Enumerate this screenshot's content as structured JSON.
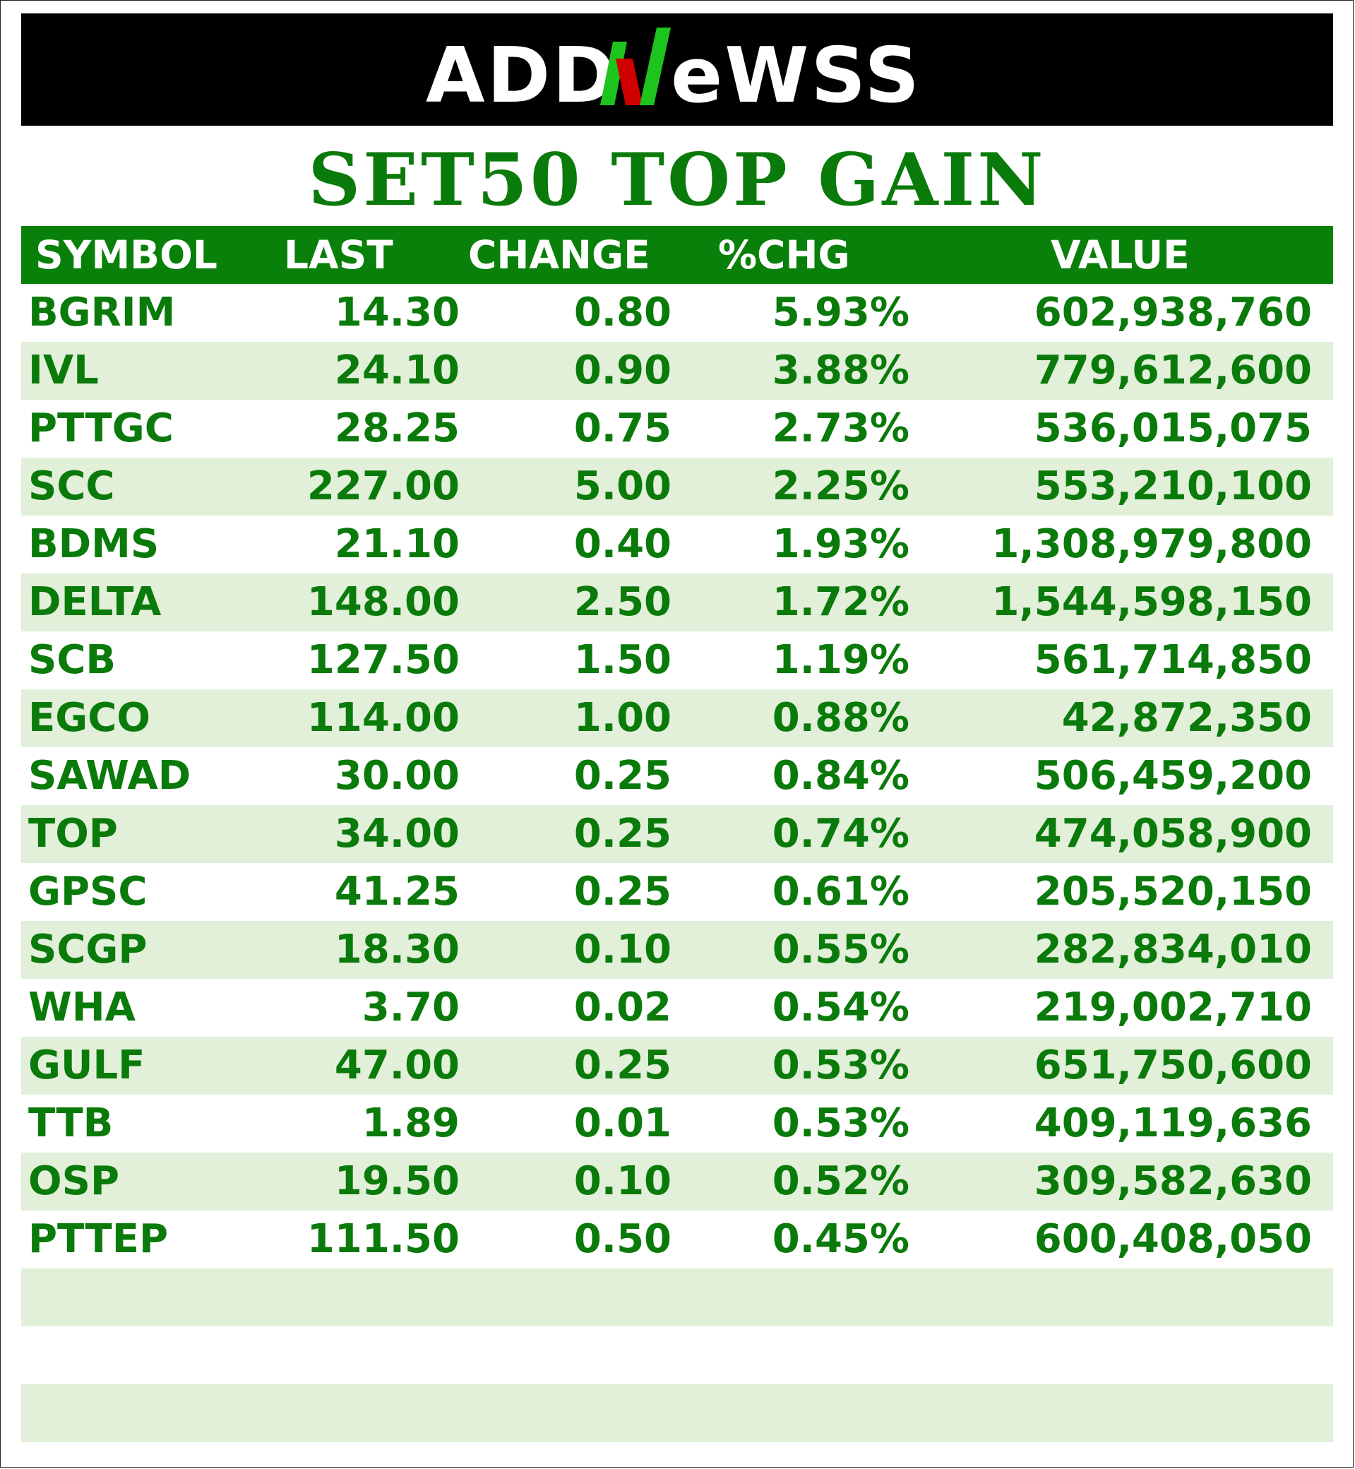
{
  "brand": {
    "logo_text": "ADDNewSS",
    "logo_colors": {
      "text": "#ffffff",
      "accent_green": "#1ec41e",
      "accent_red": "#d00000",
      "background": "#000000"
    }
  },
  "title": "SET50 TOP GAIN",
  "table": {
    "headers": {
      "symbol": "SYMBOL",
      "last": "LAST",
      "change": "CHANGE",
      "pct": "%CHG",
      "value": "VALUE"
    },
    "rows": [
      {
        "symbol": "BGRIM",
        "last": "14.30",
        "change": "0.80",
        "pct": "5.93%",
        "value": "602,938,760"
      },
      {
        "symbol": "IVL",
        "last": "24.10",
        "change": "0.90",
        "pct": "3.88%",
        "value": "779,612,600"
      },
      {
        "symbol": "PTTGC",
        "last": "28.25",
        "change": "0.75",
        "pct": "2.73%",
        "value": "536,015,075"
      },
      {
        "symbol": "SCC",
        "last": "227.00",
        "change": "5.00",
        "pct": "2.25%",
        "value": "553,210,100"
      },
      {
        "symbol": "BDMS",
        "last": "21.10",
        "change": "0.40",
        "pct": "1.93%",
        "value": "1,308,979,800"
      },
      {
        "symbol": "DELTA",
        "last": "148.00",
        "change": "2.50",
        "pct": "1.72%",
        "value": "1,544,598,150"
      },
      {
        "symbol": "SCB",
        "last": "127.50",
        "change": "1.50",
        "pct": "1.19%",
        "value": "561,714,850"
      },
      {
        "symbol": "EGCO",
        "last": "114.00",
        "change": "1.00",
        "pct": "0.88%",
        "value": "42,872,350"
      },
      {
        "symbol": "SAWAD",
        "last": "30.00",
        "change": "0.25",
        "pct": "0.84%",
        "value": "506,459,200"
      },
      {
        "symbol": "TOP",
        "last": "34.00",
        "change": "0.25",
        "pct": "0.74%",
        "value": "474,058,900"
      },
      {
        "symbol": "GPSC",
        "last": "41.25",
        "change": "0.25",
        "pct": "0.61%",
        "value": "205,520,150"
      },
      {
        "symbol": "SCGP",
        "last": "18.30",
        "change": "0.10",
        "pct": "0.55%",
        "value": "282,834,010"
      },
      {
        "symbol": "WHA",
        "last": "3.70",
        "change": "0.02",
        "pct": "0.54%",
        "value": "219,002,710"
      },
      {
        "symbol": "GULF",
        "last": "47.00",
        "change": "0.25",
        "pct": "0.53%",
        "value": "651,750,600"
      },
      {
        "symbol": "TTB",
        "last": "1.89",
        "change": "0.01",
        "pct": "0.53%",
        "value": "409,119,636"
      },
      {
        "symbol": "OSP",
        "last": "19.50",
        "change": "0.10",
        "pct": "0.52%",
        "value": "309,582,630"
      },
      {
        "symbol": "PTTEP",
        "last": "111.50",
        "change": "0.50",
        "pct": "0.45%",
        "value": "600,408,050"
      },
      {
        "symbol": "",
        "last": "",
        "change": "",
        "pct": "",
        "value": ""
      },
      {
        "symbol": "",
        "last": "",
        "change": "",
        "pct": "",
        "value": ""
      },
      {
        "symbol": "",
        "last": "",
        "change": "",
        "pct": "",
        "value": ""
      }
    ]
  },
  "colors": {
    "title_green": "#0a7a0a",
    "header_green": "#098009",
    "row_alt": "#e2efd9",
    "text_green": "#0a7a0a"
  }
}
